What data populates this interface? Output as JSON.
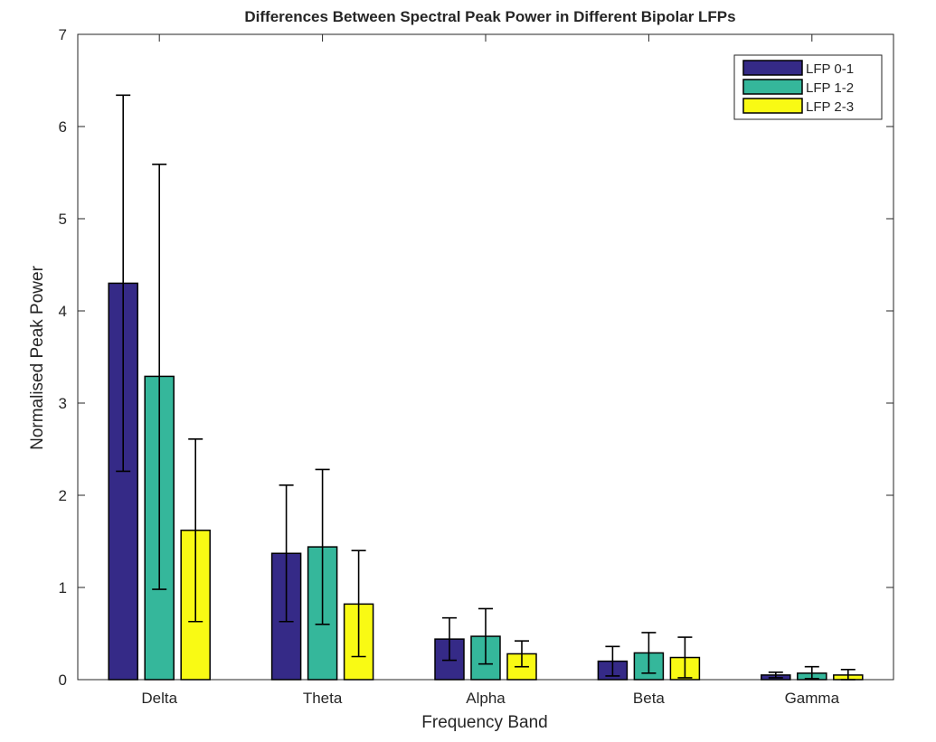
{
  "chart_data": {
    "type": "bar",
    "title": "Differences Between Spectral Peak Power in Different Bipolar LFPs",
    "xlabel": "Frequency Band",
    "ylabel": "Normalised Peak Power",
    "categories": [
      "Delta",
      "Theta",
      "Alpha",
      "Beta",
      "Gamma"
    ],
    "ylim": [
      0,
      7
    ],
    "yticks": [
      0,
      1,
      2,
      3,
      4,
      5,
      6,
      7
    ],
    "grid": false,
    "legend_position": "top-right",
    "series": [
      {
        "name": "LFP 0-1",
        "color": "#352a87",
        "values": [
          4.3,
          1.37,
          0.44,
          0.2,
          0.05
        ],
        "err_low": [
          2.26,
          0.63,
          0.21,
          0.04,
          0.02
        ],
        "err_high": [
          6.34,
          2.11,
          0.67,
          0.36,
          0.08
        ]
      },
      {
        "name": "LFP 1-2",
        "color": "#35b79b",
        "values": [
          3.29,
          1.44,
          0.47,
          0.29,
          0.07
        ],
        "err_low": [
          0.98,
          0.6,
          0.17,
          0.07,
          0.01
        ],
        "err_high": [
          5.59,
          2.28,
          0.77,
          0.51,
          0.14
        ]
      },
      {
        "name": "LFP 2-3",
        "color": "#f9fa14",
        "values": [
          1.62,
          0.82,
          0.28,
          0.24,
          0.05
        ],
        "err_low": [
          0.63,
          0.25,
          0.14,
          0.02,
          0.0
        ],
        "err_high": [
          2.61,
          1.4,
          0.42,
          0.46,
          0.11
        ]
      }
    ]
  }
}
